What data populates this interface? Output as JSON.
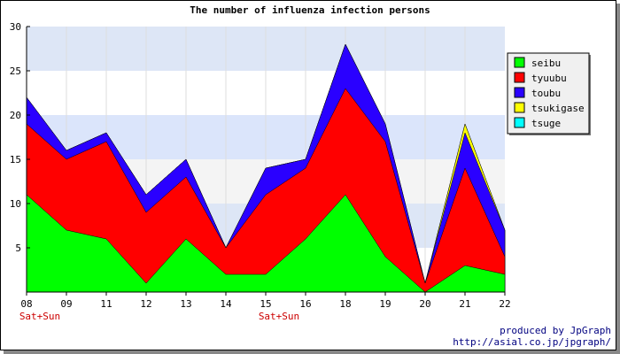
{
  "chart_data": {
    "type": "area",
    "stacked": true,
    "title": "The number of influenza infection persons",
    "categories": [
      "08",
      "09",
      "11",
      "12",
      "13",
      "14",
      "15",
      "16",
      "18",
      "19",
      "20",
      "21",
      "22"
    ],
    "category_notes": [
      "Sat+Sun",
      "",
      "",
      "",
      "",
      "",
      "Sat+Sun",
      "",
      "",
      "",
      "",
      "",
      ""
    ],
    "ylim": [
      0,
      30
    ],
    "yticks": [
      5,
      10,
      15,
      20,
      25,
      30
    ],
    "legend_position": "right",
    "grid": true,
    "band_colors": [
      "#ffffff",
      "#dde6f6",
      "#f4f4f4",
      "#dbe5fb"
    ],
    "series": [
      {
        "name": "seibu",
        "color": "#00ff00",
        "values": [
          11,
          7,
          6,
          1,
          6,
          2,
          2,
          6,
          11,
          4,
          0,
          3,
          2
        ]
      },
      {
        "name": "tyuubu",
        "color": "#ff0000",
        "values": [
          8,
          8,
          11,
          8,
          7,
          3,
          9,
          8,
          12,
          13,
          1,
          11,
          2
        ]
      },
      {
        "name": "toubu",
        "color": "#2a00ff",
        "values": [
          3,
          1,
          1,
          2,
          2,
          0,
          3,
          1,
          5,
          2,
          0,
          4,
          3
        ]
      },
      {
        "name": "tsukigase",
        "color": "#ffff00",
        "values": [
          0,
          0,
          0,
          0,
          0,
          0,
          0,
          0,
          0,
          0,
          0,
          1,
          0
        ]
      },
      {
        "name": "tsuge",
        "color": "#00ffff",
        "values": [
          0,
          0,
          0,
          0,
          0,
          0,
          0,
          0,
          0,
          0,
          0,
          0,
          0
        ]
      }
    ]
  },
  "credits": {
    "line1": "produced by JpGraph",
    "line2": "http://asial.co.jp/jpgraph/"
  }
}
